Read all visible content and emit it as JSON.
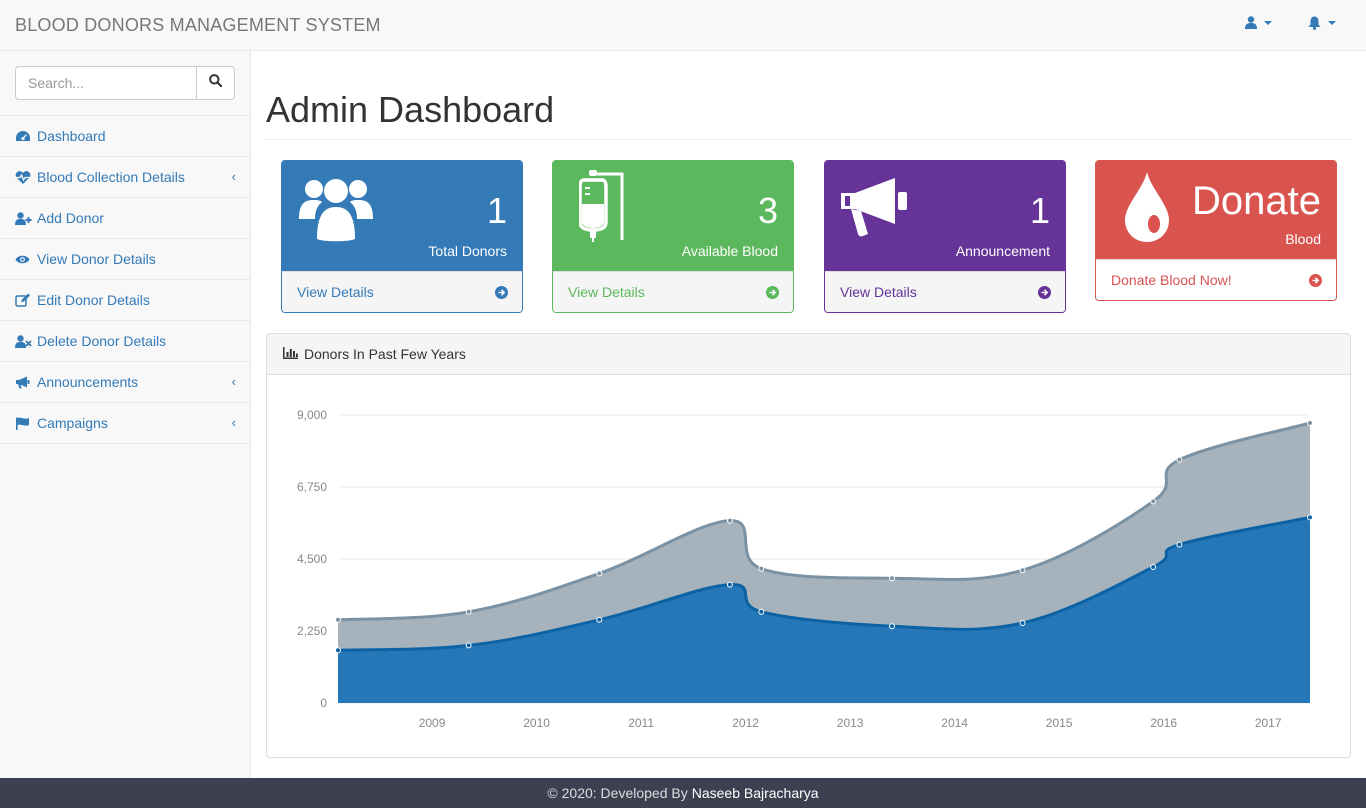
{
  "navbar": {
    "brand": "BLOOD DONORS MANAGEMENT SYSTEM",
    "user_icon": "user-icon",
    "bell_icon": "bell-icon"
  },
  "sidebar": {
    "search_placeholder": "Search...",
    "items": [
      {
        "label": "Dashboard",
        "icon": "dashboard-icon",
        "submenu": false
      },
      {
        "label": "Blood Collection Details",
        "icon": "heartbeat-icon",
        "submenu": true
      },
      {
        "label": "Add Donor",
        "icon": "user-plus-icon",
        "submenu": false
      },
      {
        "label": "View Donor Details",
        "icon": "eye-icon",
        "submenu": false
      },
      {
        "label": "Edit Donor Details",
        "icon": "edit-icon",
        "submenu": false
      },
      {
        "label": "Delete Donor Details",
        "icon": "user-times-icon",
        "submenu": false
      },
      {
        "label": "Announcements",
        "icon": "bullhorn-icon",
        "submenu": true
      },
      {
        "label": "Campaigns",
        "icon": "flag-icon",
        "submenu": true
      }
    ]
  },
  "main": {
    "title": "Admin Dashboard",
    "cards": [
      {
        "value": "1",
        "label": "Total Donors",
        "link": "View Details",
        "color": "#337ab7",
        "icon": "users-icon"
      },
      {
        "value": "3",
        "label": "Available Blood",
        "link": "View Details",
        "color": "#5cb85c",
        "icon": "blood-bag-icon"
      },
      {
        "value": "1",
        "label": "Announcement",
        "link": "View Details",
        "color": "#663399",
        "icon": "bullhorn-icon"
      },
      {
        "value": "Donate",
        "label": "Blood",
        "link": "Donate Blood Now!",
        "color": "#d9534f",
        "icon": "blood-drop-icon"
      }
    ],
    "chart_title": "Donors In Past Few Years"
  },
  "chart_data": {
    "type": "area",
    "stacked": true,
    "title": "Donors In Past Few Years",
    "xlabel": "",
    "ylabel": "",
    "ylim": [
      0,
      9000
    ],
    "yticks": [
      "0",
      "2,250",
      "4,500",
      "6,750",
      "9,000"
    ],
    "xticks": [
      "2009",
      "2010",
      "2011",
      "2012",
      "2013",
      "2014",
      "2015",
      "2016",
      "2017"
    ],
    "xlim": [
      2008.1,
      2017.4
    ],
    "grid": true,
    "x": [
      2008.1,
      2009.35,
      2010.6,
      2011.85,
      2012.15,
      2013.4,
      2014.65,
      2015.9,
      2016.15,
      2017.4
    ],
    "series": [
      {
        "color": "#2677b8",
        "values": [
          1650,
          1800,
          2600,
          3700,
          2850,
          2400,
          2500,
          4250,
          4950,
          5800
        ]
      },
      {
        "color": "#a7b3bc",
        "values": [
          950,
          1050,
          1450,
          2000,
          1350,
          1500,
          1650,
          2050,
          2650,
          2950
        ]
      }
    ],
    "colors": {
      "line_top": "#7a92a3",
      "line_bottom": "#0b62a4",
      "grid": "#e8e8e8"
    }
  },
  "footer": {
    "prefix": "© 2020: Developed By",
    "author": "Naseeb Bajracharya"
  }
}
